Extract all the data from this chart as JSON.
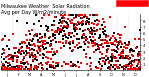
{
  "title": "Milwaukee Weather  Solar Radiation\nAvg per Day W/m2/minute",
  "title_fontsize": 3.5,
  "background_color": "#ffffff",
  "plot_bg_color": "#ffffff",
  "grid_color": "#bbbbbb",
  "ylim": [
    0,
    9
  ],
  "yticks": [
    1,
    2,
    3,
    4,
    5,
    6,
    7,
    8
  ],
  "ylabel_fontsize": 2.8,
  "xlabel_fontsize": 2.5,
  "legend_box_color": "#ff0000",
  "dot_size": 1.2,
  "red_color": "#ff0000",
  "black_color": "#000000",
  "n_years": 2,
  "n_days": 365
}
